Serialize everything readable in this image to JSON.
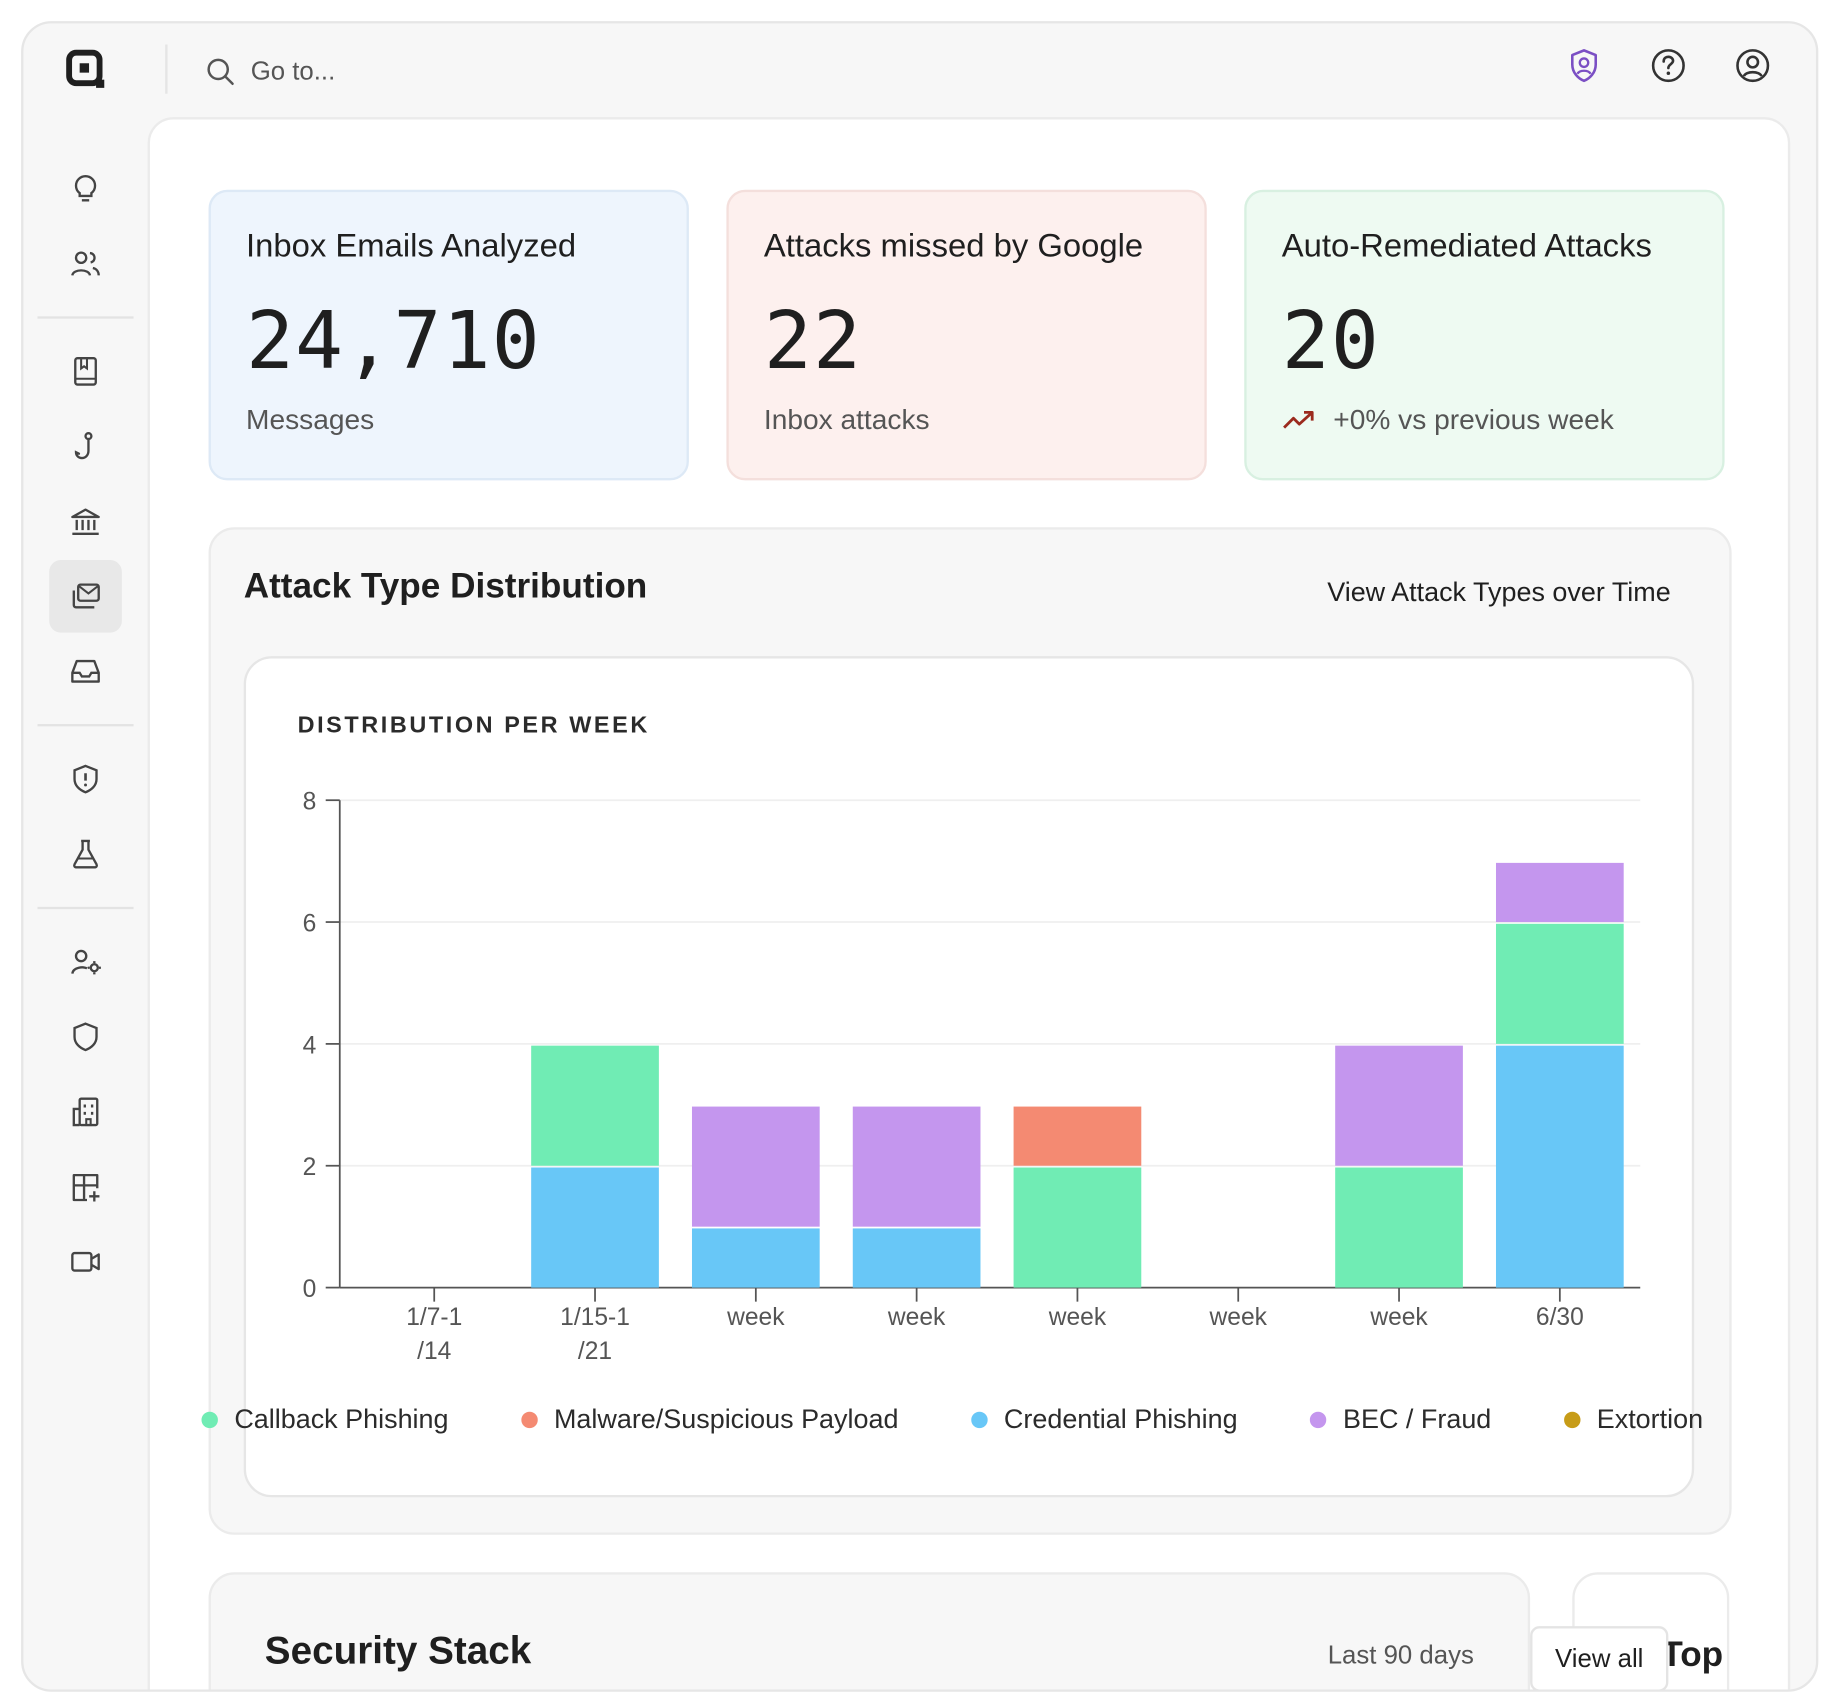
{
  "topbar": {
    "search_placeholder": "Go to...",
    "icons": [
      "logo-icon",
      "search-icon",
      "shield-user-icon",
      "help-icon",
      "account-icon"
    ]
  },
  "rail": {
    "items": [
      "lightbulb-icon",
      "users-icon",
      "book-icon",
      "hook-icon",
      "bank-icon",
      "mail-stack-icon",
      "inbox-icon",
      "shield-alert-icon",
      "flask-icon",
      "user-gear-icon",
      "shield-icon",
      "building-icon",
      "grid-plus-icon",
      "video-icon"
    ],
    "active": "mail-stack-icon"
  },
  "kpis": [
    {
      "title": "Inbox Emails Analyzed",
      "value": "24,710",
      "sub": "Messages"
    },
    {
      "title": "Attacks missed by Google",
      "value": "22",
      "sub": "Inbox attacks"
    },
    {
      "title": "Auto-Remediated Attacks",
      "value": "20",
      "sub": "+0% vs previous week"
    }
  ],
  "attack_dist": {
    "title": "Attack Type Distribution",
    "link": "View Attack Types over Time",
    "subtitle": "DISTRIBUTION PER WEEK"
  },
  "chart_data": {
    "type": "bar",
    "stacked": true,
    "title": "DISTRIBUTION PER WEEK",
    "categories": [
      "1/7-1\n/14",
      "1/15-1\n/21",
      "week",
      "week",
      "week",
      "week",
      "week",
      "6/30"
    ],
    "ylim": [
      0,
      8
    ],
    "yticks": [
      0,
      2,
      4,
      6,
      8
    ],
    "grid": true,
    "series": [
      {
        "name": "Callback Phishing",
        "color": "#70ecb4",
        "values": [
          0,
          2,
          0,
          0,
          2,
          0,
          2,
          2
        ]
      },
      {
        "name": "Malware/Suspicious Payload",
        "color": "#f48a72",
        "values": [
          0,
          0,
          0,
          0,
          1,
          0,
          0,
          0
        ]
      },
      {
        "name": "Credential Phishing",
        "color": "#68c7f7",
        "values": [
          0,
          2,
          1,
          1,
          0,
          0,
          0,
          4
        ]
      },
      {
        "name": "BEC / Fraud",
        "color": "#c496ee",
        "values": [
          0,
          0,
          2,
          2,
          0,
          0,
          2,
          1
        ]
      },
      {
        "name": "Extortion",
        "color": "#c79c18",
        "values": [
          0,
          0,
          0,
          0,
          0,
          0,
          0,
          0
        ]
      }
    ],
    "legend_position": "bottom"
  },
  "security_stack": {
    "title": "Security Stack",
    "range": "Last 90 days"
  },
  "targets": {
    "title": "Top Targ"
  },
  "view_all": "View all",
  "colors": {
    "accent": "#7b4fc4",
    "trend": "#9b2a1e"
  }
}
